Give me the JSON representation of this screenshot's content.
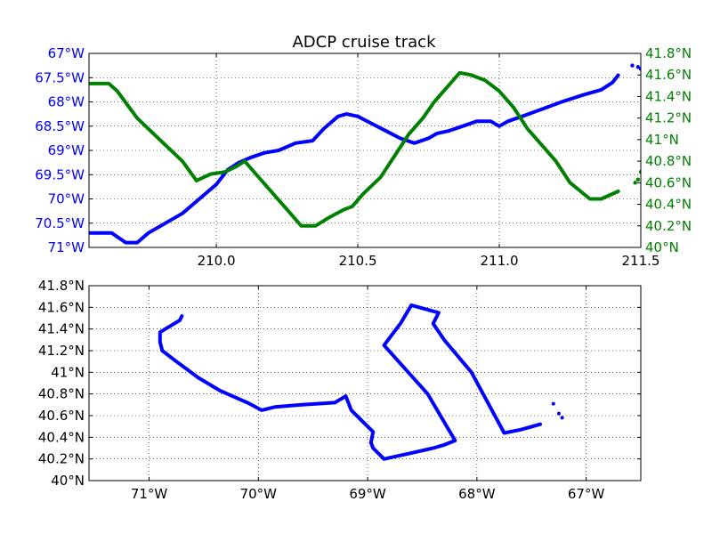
{
  "chart_data": [
    {
      "type": "line",
      "title": "ADCP cruise track",
      "xlim": [
        209.55,
        211.5
      ],
      "xticks": [
        210.0,
        210.5,
        211.0,
        211.5
      ],
      "xtick_labels": [
        "210.0",
        "210.5",
        "211.0",
        "211.5"
      ],
      "ylim_left": [
        -71,
        -67
      ],
      "yticks_left": [
        -67,
        -67.5,
        -68,
        -68.5,
        -69,
        -69.5,
        -70,
        -70.5,
        -71
      ],
      "ytick_labels_left": [
        "67°W",
        "67.5°W",
        "68°W",
        "68.5°W",
        "69°W",
        "69.5°W",
        "70°W",
        "70.5°W",
        "71°W"
      ],
      "ylim_right": [
        40.0,
        41.8
      ],
      "yticks_right": [
        41.8,
        41.6,
        41.4,
        41.2,
        41.0,
        40.8,
        40.6,
        40.4,
        40.2,
        40.0
      ],
      "ytick_labels_right": [
        "41.8°N",
        "41.6°N",
        "41.4°N",
        "41.2°N",
        "41°N",
        "40.8°N",
        "40.6°N",
        "40.4°N",
        "40.2°N",
        "40°N"
      ],
      "grid": true,
      "series": [
        {
          "axis": "left",
          "color": "#0000ff",
          "x": [
            209.55,
            209.63,
            209.68,
            209.72,
            209.76,
            209.82,
            209.88,
            209.94,
            210.0,
            210.04,
            210.08,
            210.12,
            210.17,
            210.22,
            210.28,
            210.34,
            210.38,
            210.43,
            210.46,
            210.5,
            210.55,
            210.6,
            210.65,
            210.7,
            210.75,
            210.78,
            210.82,
            210.87,
            210.92,
            210.97,
            211.0,
            211.03,
            211.08,
            211.15,
            211.22,
            211.3,
            211.36,
            211.4,
            211.42
          ],
          "y": [
            -70.7,
            -70.7,
            -70.9,
            -70.9,
            -70.7,
            -70.5,
            -70.3,
            -70.0,
            -69.7,
            -69.4,
            -69.25,
            -69.15,
            -69.05,
            -69.0,
            -68.85,
            -68.8,
            -68.55,
            -68.3,
            -68.25,
            -68.3,
            -68.45,
            -68.6,
            -68.75,
            -68.85,
            -68.75,
            -68.65,
            -68.6,
            -68.5,
            -68.4,
            -68.4,
            -68.5,
            -68.4,
            -68.3,
            -68.15,
            -68.0,
            -67.85,
            -67.75,
            -67.6,
            -67.45
          ]
        },
        {
          "axis": "left",
          "color": "#0000ff",
          "marker_only": true,
          "x": [
            211.47,
            211.49,
            211.5
          ],
          "y": [
            -67.25,
            -67.28,
            -67.32
          ]
        },
        {
          "axis": "right",
          "color": "#008000",
          "x": [
            209.55,
            209.62,
            209.65,
            209.72,
            209.8,
            209.88,
            209.93,
            209.98,
            210.03,
            210.07,
            210.1,
            210.15,
            210.2,
            210.25,
            210.3,
            210.35,
            210.4,
            210.45,
            210.48,
            210.52,
            210.58,
            210.63,
            210.68,
            210.73,
            210.77,
            210.82,
            210.86,
            210.9,
            210.95,
            211.0,
            211.05,
            211.1,
            211.15,
            211.2,
            211.25,
            211.32,
            211.36,
            211.42
          ],
          "y": [
            41.52,
            41.52,
            41.45,
            41.2,
            41.0,
            40.8,
            40.62,
            40.68,
            40.7,
            40.75,
            40.8,
            40.65,
            40.5,
            40.35,
            40.2,
            40.2,
            40.28,
            40.35,
            40.38,
            40.5,
            40.65,
            40.85,
            41.05,
            41.2,
            41.35,
            41.5,
            41.62,
            41.6,
            41.55,
            41.45,
            41.3,
            41.1,
            40.95,
            40.8,
            40.6,
            40.45,
            40.45,
            40.52
          ]
        },
        {
          "axis": "right",
          "color": "#008000",
          "marker_only": true,
          "x": [
            211.48,
            211.49,
            211.5
          ],
          "y": [
            40.6,
            40.63,
            40.7
          ]
        }
      ]
    },
    {
      "type": "line",
      "xlim": [
        -71.55,
        -66.5
      ],
      "xticks": [
        -71,
        -70,
        -69,
        -68,
        -67
      ],
      "xtick_labels": [
        "71°W",
        "70°W",
        "69°W",
        "68°W",
        "67°W"
      ],
      "ylim": [
        40.0,
        41.8
      ],
      "yticks": [
        41.8,
        41.6,
        41.4,
        41.2,
        41.0,
        40.8,
        40.6,
        40.4,
        40.2,
        40.0
      ],
      "ytick_labels": [
        "41.8°N",
        "41.6°N",
        "41.4°N",
        "41.2°N",
        "41°N",
        "40.8°N",
        "40.6°N",
        "40.4°N",
        "40.2°N",
        "40°N"
      ],
      "grid": true,
      "series": [
        {
          "color": "#0000ff",
          "x": [
            -70.7,
            -70.72,
            -70.9,
            -70.9,
            -70.88,
            -70.75,
            -70.55,
            -70.35,
            -70.1,
            -69.97,
            -69.85,
            -69.6,
            -69.3,
            -69.2,
            -69.15,
            -69.05,
            -68.95,
            -68.97,
            -68.95,
            -68.85,
            -68.62,
            -68.4,
            -68.3,
            -68.2,
            -68.45,
            -68.85,
            -68.7,
            -68.6,
            -68.35,
            -68.4,
            -68.3,
            -68.05,
            -67.75,
            -67.6,
            -67.42
          ],
          "y": [
            41.52,
            41.48,
            41.37,
            41.28,
            41.2,
            41.1,
            40.95,
            40.83,
            40.72,
            40.65,
            40.68,
            40.7,
            40.72,
            40.78,
            40.65,
            40.55,
            40.45,
            40.35,
            40.3,
            40.2,
            40.25,
            40.3,
            40.33,
            40.37,
            40.8,
            41.25,
            41.45,
            41.62,
            41.55,
            41.45,
            41.3,
            41.0,
            40.44,
            40.47,
            40.52
          ]
        },
        {
          "color": "#0000ff",
          "marker_only": true,
          "x": [
            -67.3,
            -67.25,
            -67.22
          ],
          "y": [
            40.71,
            40.62,
            40.58
          ]
        }
      ]
    }
  ]
}
